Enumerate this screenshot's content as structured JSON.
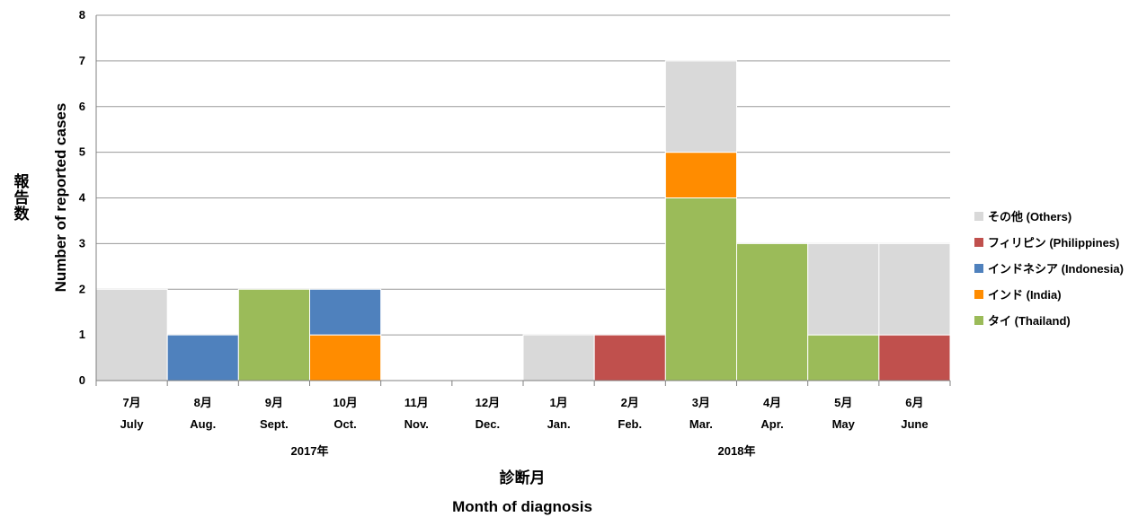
{
  "chart_data": {
    "type": "bar",
    "stacked": true,
    "categories": [
      {
        "ja": "7月",
        "en": "July"
      },
      {
        "ja": "8月",
        "en": "Aug."
      },
      {
        "ja": "9月",
        "en": "Sept."
      },
      {
        "ja": "10月",
        "en": "Oct."
      },
      {
        "ja": "11月",
        "en": "Nov."
      },
      {
        "ja": "12月",
        "en": "Dec."
      },
      {
        "ja": "1月",
        "en": "Jan."
      },
      {
        "ja": "2月",
        "en": "Feb."
      },
      {
        "ja": "3月",
        "en": "Mar."
      },
      {
        "ja": "4月",
        "en": "Apr."
      },
      {
        "ja": "5月",
        "en": "May"
      },
      {
        "ja": "6月",
        "en": "June"
      }
    ],
    "years": [
      {
        "label": "2017年",
        "from": 0,
        "to": 5
      },
      {
        "label": "2018年",
        "from": 6,
        "to": 11
      }
    ],
    "series": [
      {
        "name": "タイ (Thailand)",
        "color": "#9BBB59",
        "values": [
          0,
          0,
          2,
          0,
          0,
          0,
          0,
          0,
          4,
          3,
          1,
          0
        ]
      },
      {
        "name": "インド (India)",
        "color": "#FF8C00",
        "values": [
          0,
          0,
          0,
          1,
          0,
          0,
          0,
          0,
          1,
          0,
          0,
          0
        ]
      },
      {
        "name": "インドネシア (Indonesia)",
        "color": "#4F81BD",
        "values": [
          0,
          1,
          0,
          1,
          0,
          0,
          0,
          0,
          0,
          0,
          0,
          0
        ]
      },
      {
        "name": "フィリピン (Philippines)",
        "color": "#C0504D",
        "values": [
          0,
          0,
          0,
          0,
          0,
          0,
          0,
          1,
          0,
          0,
          0,
          1
        ]
      },
      {
        "name": "その他 (Others)",
        "color": "#D9D9D9",
        "values": [
          2,
          0,
          0,
          0,
          0,
          0,
          1,
          0,
          2,
          0,
          2,
          2
        ]
      }
    ],
    "legend_order": [
      "その他 (Others)",
      "フィリピン (Philippines)",
      "インドネシア (Indonesia)",
      "インド (India)",
      "タイ (Thailand)"
    ],
    "ylim": [
      0,
      8
    ],
    "yticks": [
      0,
      1,
      2,
      3,
      4,
      5,
      6,
      7,
      8
    ],
    "ylabel_ja": "報告数",
    "ylabel_en": "Number of reported cases",
    "xlabel_ja": "診断月",
    "xlabel_en": "Month of diagnosis",
    "grid": true,
    "legend_position": "right"
  }
}
